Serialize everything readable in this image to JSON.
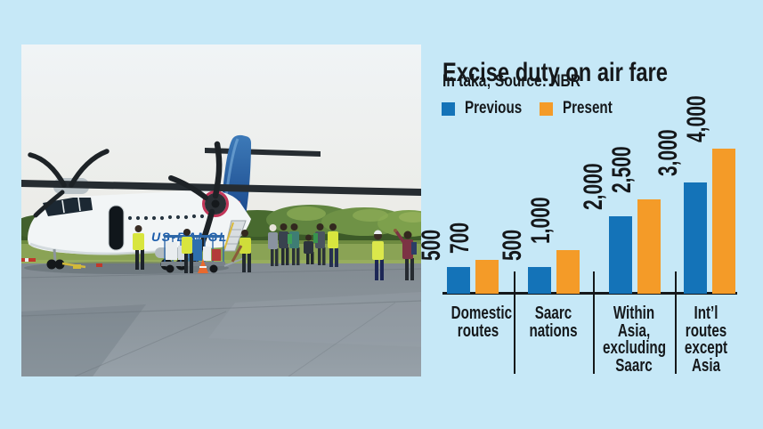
{
  "page": {
    "background_color": "#c6e8f7",
    "text_color": "#15181b"
  },
  "photo": {
    "description": "US-Bangla ATR turboprop aircraft parked on airport tarmac with ground crew in hi-vis vests, passengers and a baggage trolley, tree line behind",
    "livery_text": "US-BANGLA"
  },
  "chart": {
    "title": "Excise duty on air fare",
    "subtitle": "In taka; Source: NBR"
  },
  "chart_data": {
    "type": "bar",
    "title": "Excise duty on air fare",
    "subtitle": "In taka; Source: NBR",
    "unit": "taka",
    "source": "NBR",
    "categories": [
      "Domestic\nroutes",
      "Saarc\nnations",
      "Within\nAsia,\nexcluding\nSaarc",
      "Int’l\nroutes\nexcept\nAsia"
    ],
    "series": [
      {
        "name": "Previous",
        "color": "#1473b8",
        "values": [
          500,
          500,
          2000,
          3000
        ],
        "labels": [
          "500",
          "500",
          "2,000",
          "3,000"
        ]
      },
      {
        "name": "Present",
        "color": "#f49b28",
        "values": [
          700,
          1000,
          2500,
          4000
        ],
        "labels": [
          "700",
          "1,000",
          "2,500",
          "4,000"
        ]
      }
    ],
    "value_labels_rotated": true,
    "axis": {
      "min": 0,
      "max": 4000,
      "gridlines": false,
      "baseline": true
    },
    "legend_position": "top-left"
  }
}
